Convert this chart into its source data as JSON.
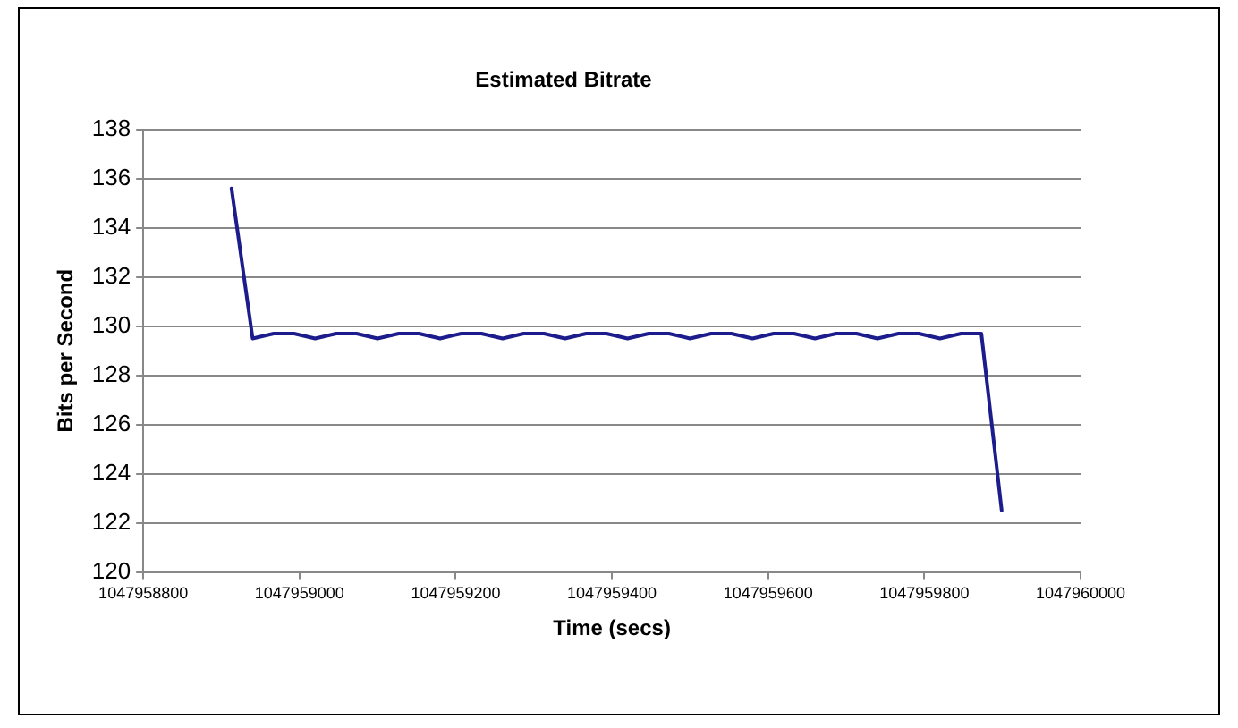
{
  "chart_data": {
    "type": "line",
    "title": "Estimated Bitrate",
    "xlabel": "Time (secs)",
    "ylabel": "Bits per Second",
    "x": [
      1047958913,
      1047958940,
      1047958967,
      1047958993,
      1047959020,
      1047959047,
      1047959073,
      1047959100,
      1047959127,
      1047959153,
      1047959180,
      1047959207,
      1047959233,
      1047959260,
      1047959287,
      1047959313,
      1047959340,
      1047959367,
      1047959393,
      1047959420,
      1047959447,
      1047959473,
      1047959500,
      1047959527,
      1047959553,
      1047959580,
      1047959607,
      1047959633,
      1047959660,
      1047959687,
      1047959713,
      1047959740,
      1047959767,
      1047959793,
      1047959820,
      1047959847,
      1047959873,
      1047959899
    ],
    "series": [
      {
        "color": "#1c1c8c",
        "values": [
          135.6,
          129.5,
          129.7,
          129.7,
          129.5,
          129.7,
          129.7,
          129.5,
          129.7,
          129.7,
          129.5,
          129.7,
          129.7,
          129.5,
          129.7,
          129.7,
          129.5,
          129.7,
          129.7,
          129.5,
          129.7,
          129.7,
          129.5,
          129.7,
          129.7,
          129.5,
          129.7,
          129.7,
          129.5,
          129.7,
          129.7,
          129.5,
          129.7,
          129.7,
          129.5,
          129.7,
          129.7,
          122.5
        ]
      }
    ],
    "xlim": [
      1047958800,
      1047960000
    ],
    "xticks": [
      1047958800,
      1047959000,
      1047959200,
      1047959400,
      1047959600,
      1047959800,
      1047960000
    ],
    "ylim": [
      120,
      138
    ],
    "yticks": [
      120,
      122,
      124,
      126,
      128,
      130,
      132,
      134,
      136,
      138
    ],
    "grid": "y",
    "legend": false,
    "marker": "none",
    "line_style": "solid"
  }
}
